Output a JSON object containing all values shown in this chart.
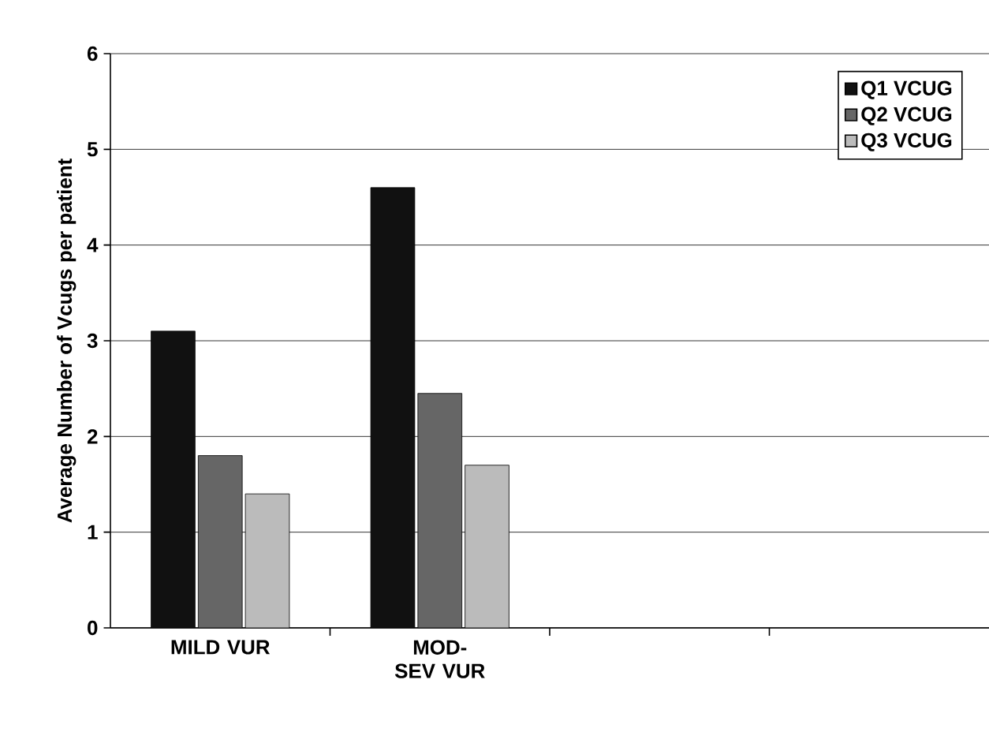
{
  "chart_data": {
    "type": "bar",
    "ylabel": "Average Number of Vcugs per patient",
    "categories": [
      "MILD VUR",
      "MOD-SEV VUR",
      null,
      null
    ],
    "series": [
      {
        "name": "Q1 VCUG",
        "color": "#111111",
        "values": [
          3.1,
          4.6,
          null,
          null
        ]
      },
      {
        "name": "Q2 VCUG",
        "color": "#666666",
        "values": [
          1.8,
          2.45,
          null,
          null
        ]
      },
      {
        "name": "Q3 VCUG",
        "color": "#bbbbbb",
        "values": [
          1.4,
          1.7,
          null,
          null
        ]
      }
    ],
    "ylim": [
      0,
      6
    ],
    "yticks": [
      0,
      1,
      2,
      3,
      4,
      5,
      6
    ],
    "grid": "y",
    "legend": "top right"
  }
}
